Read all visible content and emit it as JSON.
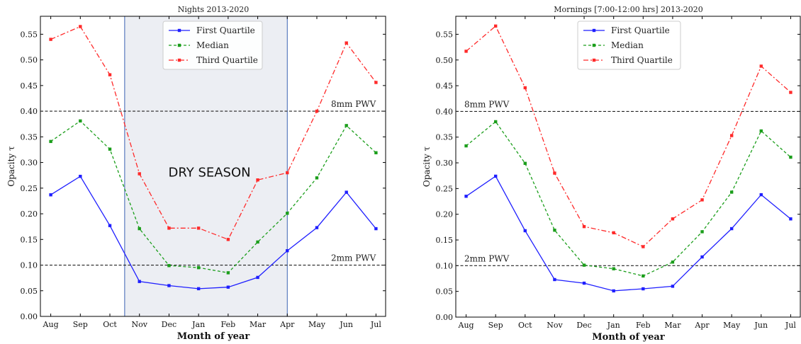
{
  "chart_data": [
    {
      "type": "line",
      "title": "Nights 2013-2020",
      "xlabel": "Month of year",
      "ylabel": "Opacity τ",
      "categories": [
        "Aug",
        "Sep",
        "Oct",
        "Nov",
        "Dec",
        "Jan",
        "Feb",
        "Mar",
        "Apr",
        "May",
        "Jun",
        "Jul"
      ],
      "ylim": [
        0.0,
        0.585
      ],
      "yticks": [
        "0.00",
        "0.05",
        "0.10",
        "0.15",
        "0.20",
        "0.25",
        "0.30",
        "0.35",
        "0.40",
        "0.45",
        "0.50",
        "0.55"
      ],
      "series": [
        {
          "name": "First Quartile",
          "color": "#1f1fff",
          "style": "solid",
          "values": [
            0.237,
            0.273,
            0.177,
            0.068,
            0.06,
            0.054,
            0.057,
            0.076,
            0.128,
            0.173,
            0.242,
            0.171
          ]
        },
        {
          "name": "Median",
          "color": "#1b9e1b",
          "style": "dashed",
          "values": [
            0.341,
            0.381,
            0.326,
            0.171,
            0.099,
            0.095,
            0.085,
            0.145,
            0.201,
            0.27,
            0.372,
            0.319
          ]
        },
        {
          "name": "Third Quartile",
          "color": "#ff2a2a",
          "style": "dashdot",
          "values": [
            0.54,
            0.565,
            0.471,
            0.278,
            0.172,
            0.172,
            0.15,
            0.266,
            0.28,
            0.4,
            0.533,
            0.456
          ]
        }
      ],
      "reference_lines": [
        {
          "y": 0.4,
          "label": "8mm PWV"
        },
        {
          "y": 0.1,
          "label": "2mm PWV"
        }
      ],
      "shaded_region": {
        "from": "Nov",
        "to": "Apr",
        "label": "DRY SEASON"
      },
      "legend_position": "top-center",
      "grid": false
    },
    {
      "type": "line",
      "title": "Mornings [7:00-12:00 hrs] 2013-2020",
      "xlabel": "Month of year",
      "ylabel": "Opacity τ",
      "categories": [
        "Aug",
        "Sep",
        "Oct",
        "Nov",
        "Dec",
        "Jan",
        "Feb",
        "Mar",
        "Apr",
        "May",
        "Jun",
        "Jul"
      ],
      "ylim": [
        0.0,
        0.585
      ],
      "yticks": [
        "0.00",
        "0.05",
        "0.10",
        "0.15",
        "0.20",
        "0.25",
        "0.30",
        "0.35",
        "0.40",
        "0.45",
        "0.50",
        "0.55"
      ],
      "series": [
        {
          "name": "First Quartile",
          "color": "#1f1fff",
          "style": "solid",
          "values": [
            0.235,
            0.274,
            0.168,
            0.073,
            0.066,
            0.051,
            0.055,
            0.06,
            0.117,
            0.172,
            0.238,
            0.191
          ]
        },
        {
          "name": "Median",
          "color": "#1b9e1b",
          "style": "dashed",
          "values": [
            0.333,
            0.38,
            0.299,
            0.169,
            0.101,
            0.094,
            0.08,
            0.107,
            0.166,
            0.243,
            0.362,
            0.311
          ]
        },
        {
          "name": "Third Quartile",
          "color": "#ff2a2a",
          "style": "dashdot",
          "values": [
            0.517,
            0.566,
            0.446,
            0.28,
            0.176,
            0.164,
            0.137,
            0.191,
            0.228,
            0.353,
            0.488,
            0.437
          ]
        }
      ],
      "reference_lines": [
        {
          "y": 0.4,
          "label": "8mm PWV"
        },
        {
          "y": 0.1,
          "label": "2mm PWV"
        }
      ],
      "legend_position": "top-center",
      "grid": false
    }
  ]
}
